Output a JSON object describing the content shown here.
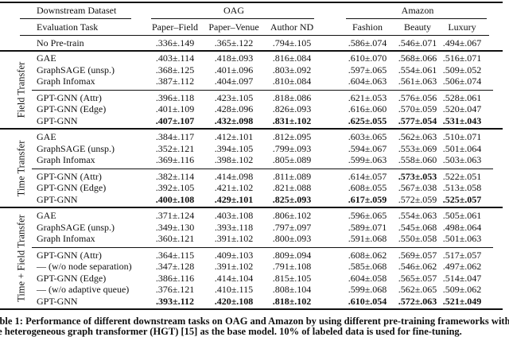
{
  "header": {
    "dataset_label": "Downstream Dataset",
    "task_label": "Evaluation Task",
    "groups": [
      "OAG",
      "Amazon"
    ],
    "columns": [
      "Paper–Field",
      "Paper–Venue",
      "Author ND",
      "Fashion",
      "Beauty",
      "Luxury"
    ]
  },
  "baseline": {
    "label": "No Pre-train",
    "values": [
      ".336±.149",
      ".365±.122",
      ".794±.105",
      ".586±.074",
      ".546±.071",
      ".494±.067"
    ]
  },
  "sections": [
    {
      "name": "Field Transfer",
      "blocks": [
        [
          {
            "label": "GAE",
            "values": [
              ".403±.114",
              ".418±.093",
              ".816±.084",
              ".610±.070",
              ".568±.066",
              ".516±.071"
            ],
            "bold": []
          },
          {
            "label": "GraphSAGE (unsp.)",
            "values": [
              ".368±.125",
              ".401±.096",
              ".803±.092",
              ".597±.065",
              ".554±.061",
              ".509±.052"
            ],
            "bold": []
          },
          {
            "label": "Graph Infomax",
            "values": [
              ".387±.112",
              ".404±.097",
              ".810±.084",
              ".604±.063",
              ".561±.063",
              ".506±.074"
            ],
            "bold": []
          }
        ],
        [
          {
            "label": "GPT-GNN (Attr)",
            "values": [
              ".396±.118",
              ".423±.105",
              ".818±.086",
              ".621±.053",
              ".576±.056",
              ".528±.061"
            ],
            "bold": []
          },
          {
            "label": "GPT-GNN (Edge)",
            "values": [
              ".401±.109",
              ".428±.096",
              ".826±.093",
              ".616±.060",
              ".570±.059",
              ".520±.047"
            ],
            "bold": []
          },
          {
            "label": "GPT-GNN",
            "values": [
              ".407±.107",
              ".432±.098",
              ".831±.102",
              ".625±.055",
              ".577±.054",
              ".531±.043"
            ],
            "bold": [
              0,
              1,
              2,
              3,
              4,
              5
            ]
          }
        ]
      ]
    },
    {
      "name": "Time Transfer",
      "blocks": [
        [
          {
            "label": "GAE",
            "values": [
              ".384±.117",
              ".412±.101",
              ".812±.095",
              ".603±.065",
              ".562±.063",
              ".510±.071"
            ],
            "bold": []
          },
          {
            "label": "GraphSAGE (unsp.)",
            "values": [
              ".352±.121",
              ".394±.105",
              ".799±.093",
              ".594±.067",
              ".553±.069",
              ".501±.064"
            ],
            "bold": []
          },
          {
            "label": "Graph Infomax",
            "values": [
              ".369±.116",
              ".398±.102",
              ".805±.089",
              ".599±.063",
              ".558±.060",
              ".503±.063"
            ],
            "bold": []
          }
        ],
        [
          {
            "label": "GPT-GNN (Attr)",
            "values": [
              ".382±.114",
              ".414±.098",
              ".811±.089",
              ".614±.057",
              ".573±.053",
              ".522±.051"
            ],
            "bold": [
              4
            ]
          },
          {
            "label": "GPT-GNN (Edge)",
            "values": [
              ".392±.105",
              ".421±.102",
              ".821±.088",
              ".608±.055",
              ".567±.038",
              ".513±.058"
            ],
            "bold": []
          },
          {
            "label": "GPT-GNN",
            "values": [
              ".400±.108",
              ".429±.101",
              ".825±.093",
              ".617±.059",
              ".572±.059",
              ".525±.057"
            ],
            "bold": [
              0,
              1,
              2,
              3,
              5
            ]
          }
        ]
      ]
    },
    {
      "name": "Time + Field Transfer",
      "blocks": [
        [
          {
            "label": "GAE",
            "values": [
              ".371±.124",
              ".403±.108",
              ".806±.102",
              ".596±.065",
              ".554±.063",
              ".505±.061"
            ],
            "bold": []
          },
          {
            "label": "GraphSAGE (unsp.)",
            "values": [
              ".349±.130",
              ".393±.118",
              ".797±.097",
              ".589±.071",
              ".545±.068",
              ".498±.064"
            ],
            "bold": []
          },
          {
            "label": "Graph Infomax",
            "values": [
              ".360±.121",
              ".391±.102",
              ".800±.093",
              ".591±.068",
              ".550±.058",
              ".501±.063"
            ],
            "bold": []
          }
        ],
        [
          {
            "label": "GPT-GNN (Attr)",
            "values": [
              ".364±.115",
              ".409±.103",
              ".809±.094",
              ".608±.062",
              ".569±.057",
              ".517±.057"
            ],
            "bold": []
          },
          {
            "label": "— (w/o node separation)",
            "values": [
              ".347±.128",
              ".391±.102",
              ".791±.108",
              ".585±.068",
              ".546±.062",
              ".497±.062"
            ],
            "bold": []
          },
          {
            "label": "GPT-GNN (Edge)",
            "values": [
              ".386±.116",
              ".414±.104",
              ".815±.105",
              ".604±.058",
              ".565±.057",
              ".514±.047"
            ],
            "bold": []
          },
          {
            "label": "— (w/o adaptive queue)",
            "values": [
              ".376±.121",
              ".410±.115",
              ".808±.104",
              ".599±.068",
              ".562±.065",
              ".509±.062"
            ],
            "bold": []
          },
          {
            "label": "GPT-GNN",
            "values": [
              ".393±.112",
              ".420±.108",
              ".818±.102",
              ".610±.054",
              ".572±.063",
              ".521±.049"
            ],
            "bold": [
              0,
              1,
              2,
              3,
              4,
              5
            ]
          }
        ]
      ]
    }
  ],
  "caption": {
    "line1": "Table 1: Performance of different downstream tasks on OAG and Amazon by using different pre-training frameworks with",
    "line2": "the heterogeneous graph transformer (HGT) [15] as the base model. 10% of labeled data is used for fine-tuning."
  }
}
